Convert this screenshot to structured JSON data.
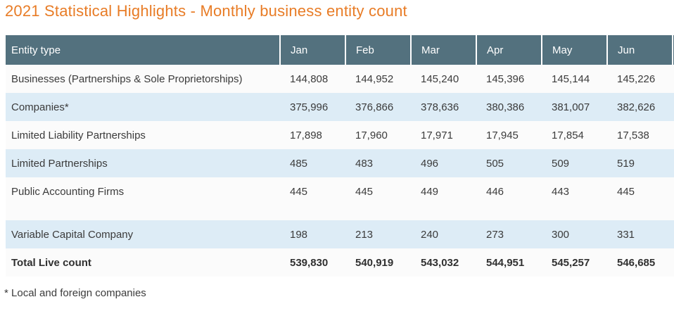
{
  "title": "2021 Statistical Highlights - Monthly business entity count",
  "colors": {
    "title_text": "#e87c26",
    "header_bg": "#53717e",
    "header_text": "#ffffff",
    "alt_row_bg": "#ddecf6",
    "row_bg": "#fbfbfb",
    "body_text": "#3b3b3b"
  },
  "table": {
    "columns": [
      "Entity type",
      "Jan",
      "Feb",
      "Mar",
      "Apr",
      "May",
      "Jun"
    ],
    "rows": [
      {
        "label": "Businesses (Partnerships & Sole Proprietorships)",
        "values": [
          "144,808",
          "144,952",
          "145,240",
          "145,396",
          "145,144",
          "145,226"
        ]
      },
      {
        "label": "Companies*",
        "values": [
          "375,996",
          "376,866",
          "378,636",
          "380,386",
          "381,007",
          "382,626"
        ]
      },
      {
        "label": "Limited Liability Partnerships",
        "values": [
          "17,898",
          "17,960",
          "17,971",
          "17,945",
          "17,854",
          "17,538"
        ]
      },
      {
        "label": "Limited Partnerships",
        "values": [
          "485",
          "483",
          "496",
          "505",
          "509",
          "519"
        ]
      },
      {
        "label": "Public Accounting Firms",
        "values": [
          "445",
          "445",
          "449",
          "446",
          "443",
          "445"
        ]
      },
      {
        "label": "Variable Capital Company",
        "values": [
          "198",
          "213",
          "240",
          "273",
          "300",
          "331"
        ]
      },
      {
        "label": "Total Live count",
        "values": [
          "539,830",
          "540,919",
          "543,032",
          "544,951",
          "545,257",
          "546,685"
        ]
      }
    ]
  },
  "footnote": "* Local and foreign companies"
}
